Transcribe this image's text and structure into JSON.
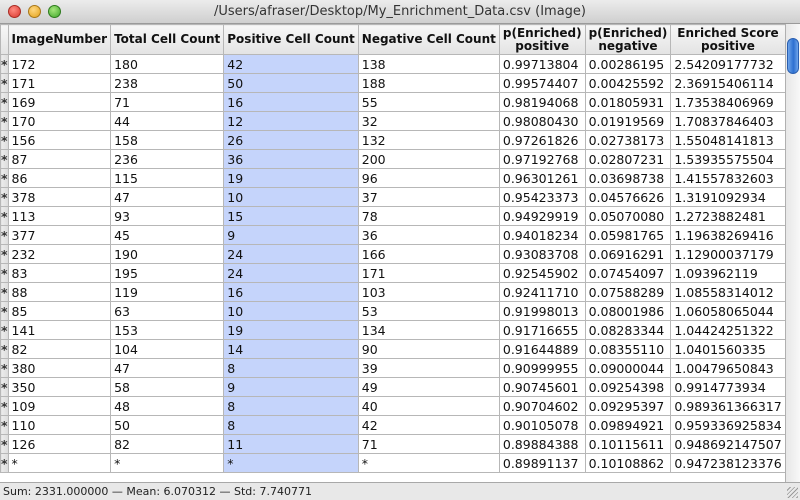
{
  "window": {
    "title": "/Users/afraser/Desktop/My_Enrichment_Data.csv (Image)"
  },
  "table": {
    "headers": [
      "",
      "ImageNumber",
      "Total Cell Count",
      "Positive Cell Count",
      "Negative Cell Count",
      "p(Enriched)\npositive",
      "p(Enriched)\nnegative",
      "Enriched Score\npositive"
    ],
    "rows": [
      [
        "*",
        "172",
        "180",
        "42",
        "138",
        "0.99713804",
        "0.00286195",
        "2.54209177732"
      ],
      [
        "*",
        "171",
        "238",
        "50",
        "188",
        "0.99574407",
        "0.00425592",
        "2.36915406114"
      ],
      [
        "*",
        "169",
        "71",
        "16",
        "55",
        "0.98194068",
        "0.01805931",
        "1.73538406969"
      ],
      [
        "*",
        "170",
        "44",
        "12",
        "32",
        "0.98080430",
        "0.01919569",
        "1.70837846403"
      ],
      [
        "*",
        "156",
        "158",
        "26",
        "132",
        "0.97261826",
        "0.02738173",
        "1.55048141813"
      ],
      [
        "*",
        "87",
        "236",
        "36",
        "200",
        "0.97192768",
        "0.02807231",
        "1.53935575504"
      ],
      [
        "*",
        "86",
        "115",
        "19",
        "96",
        "0.96301261",
        "0.03698738",
        "1.41557832603"
      ],
      [
        "*",
        "378",
        "47",
        "10",
        "37",
        "0.95423373",
        "0.04576626",
        "1.3191092934"
      ],
      [
        "*",
        "113",
        "93",
        "15",
        "78",
        "0.94929919",
        "0.05070080",
        "1.2723882481"
      ],
      [
        "*",
        "377",
        "45",
        "9",
        "36",
        "0.94018234",
        "0.05981765",
        "1.19638269416"
      ],
      [
        "*",
        "232",
        "190",
        "24",
        "166",
        "0.93083708",
        "0.06916291",
        "1.12900037179"
      ],
      [
        "*",
        "83",
        "195",
        "24",
        "171",
        "0.92545902",
        "0.07454097",
        "1.093962119"
      ],
      [
        "*",
        "88",
        "119",
        "16",
        "103",
        "0.92411710",
        "0.07588289",
        "1.08558314012"
      ],
      [
        "*",
        "85",
        "63",
        "10",
        "53",
        "0.91998013",
        "0.08001986",
        "1.06058065044"
      ],
      [
        "*",
        "141",
        "153",
        "19",
        "134",
        "0.91716655",
        "0.08283344",
        "1.04424251322"
      ],
      [
        "*",
        "82",
        "104",
        "14",
        "90",
        "0.91644889",
        "0.08355110",
        "1.0401560335"
      ],
      [
        "*",
        "380",
        "47",
        "8",
        "39",
        "0.90999955",
        "0.09000044",
        "1.00479650843"
      ],
      [
        "*",
        "350",
        "58",
        "9",
        "49",
        "0.90745601",
        "0.09254398",
        "0.9914773934"
      ],
      [
        "*",
        "109",
        "48",
        "8",
        "40",
        "0.90704602",
        "0.09295397",
        "0.989361366317"
      ],
      [
        "*",
        "110",
        "50",
        "8",
        "42",
        "0.90105078",
        "0.09894921",
        "0.959336925834"
      ],
      [
        "*",
        "126",
        "82",
        "11",
        "71",
        "0.89884388",
        "0.10115611",
        "0.948692147507"
      ],
      [
        "*",
        "*",
        "*",
        "*",
        "*",
        "0.89891137",
        "0.10108862",
        "0.947238123376"
      ]
    ]
  },
  "status": {
    "text": "Sum: 2331.000000 — Mean: 6.070312 — Std: 7.740771"
  },
  "colors": {
    "selected_column": "#c5d4fb",
    "scroll_thumb": "#2c6fd1"
  }
}
